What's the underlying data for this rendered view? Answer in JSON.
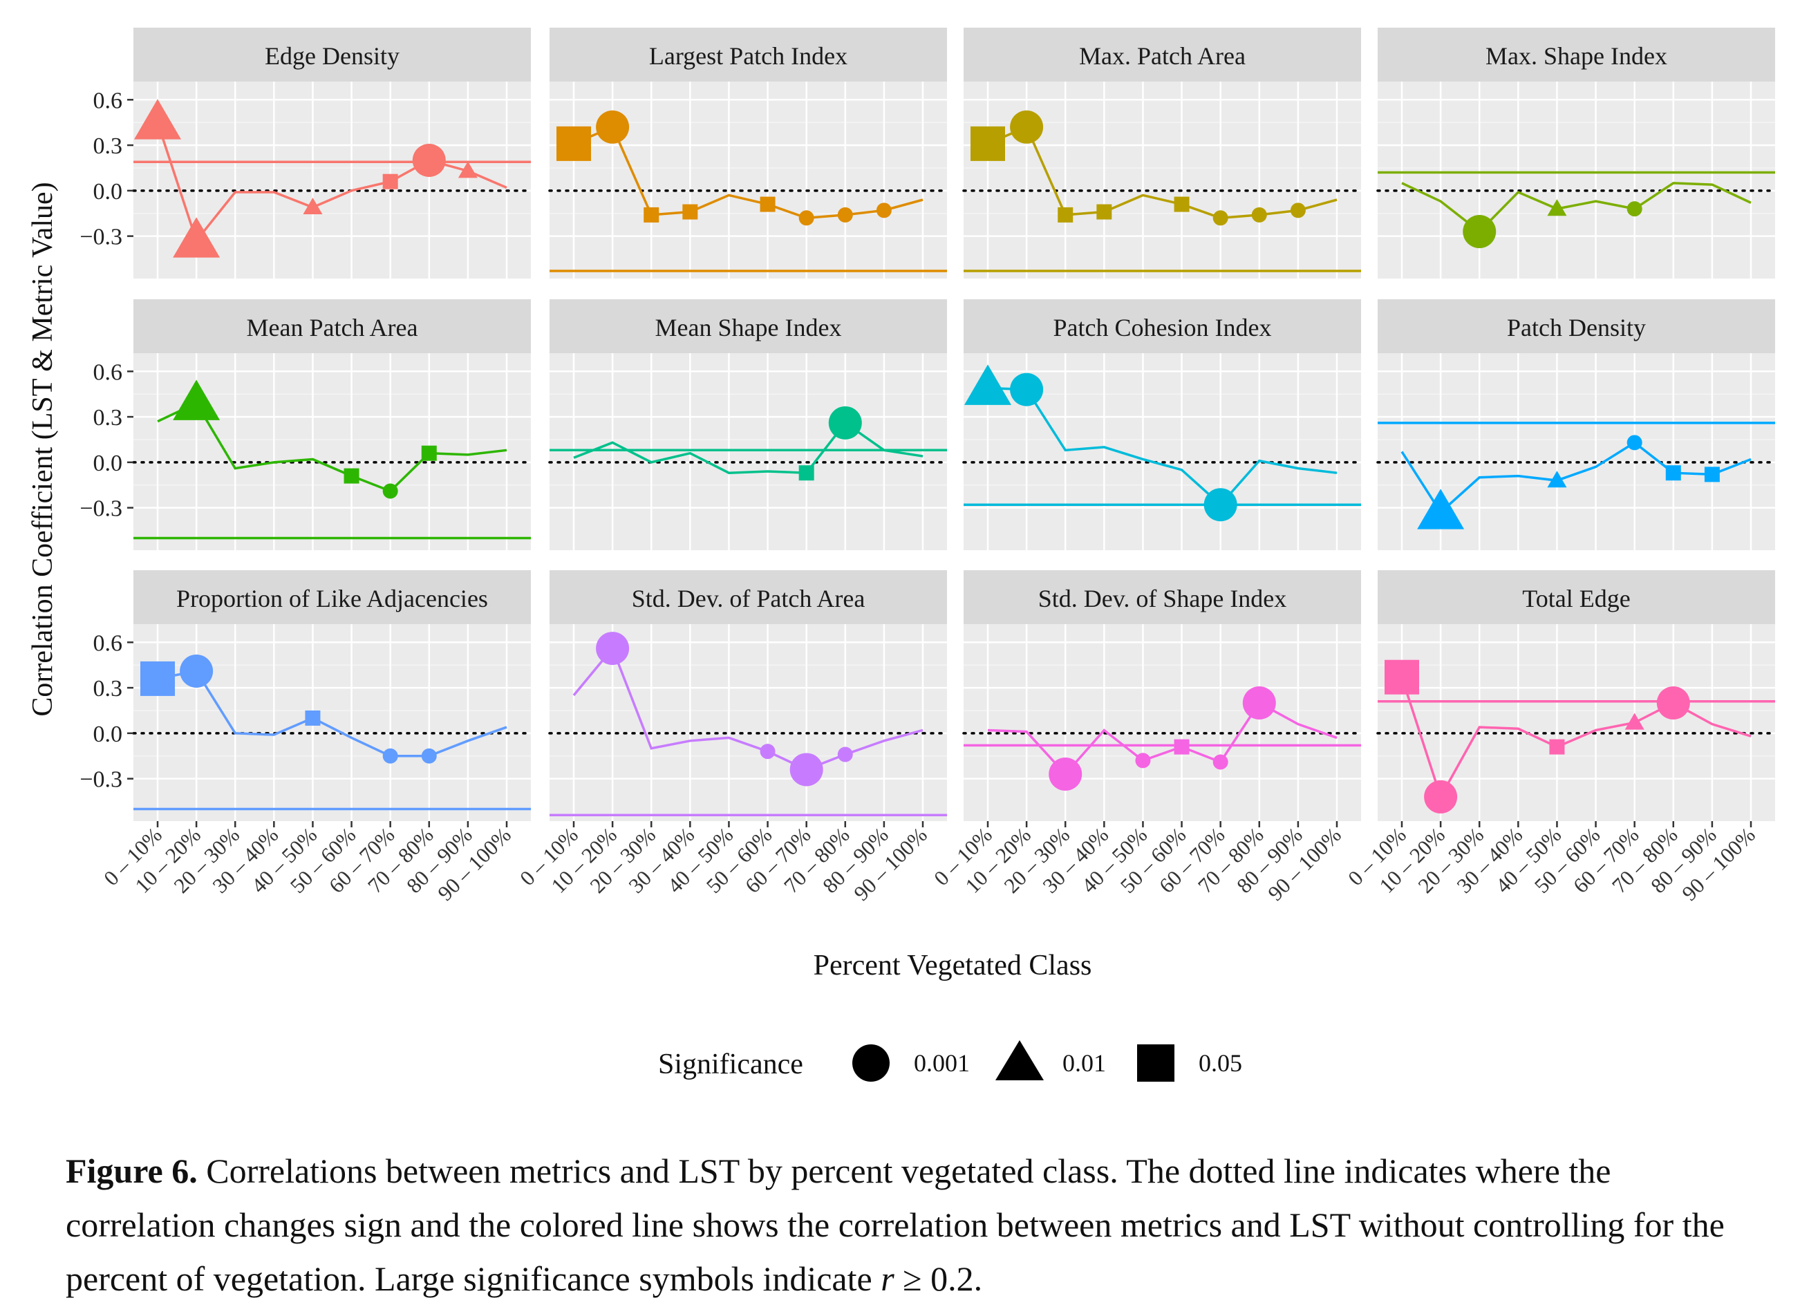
{
  "figure": {
    "y_axis_title": "Correlation Coefficient (LST & Metric Value)",
    "x_axis_title": "Percent Vegetated Class",
    "legend": {
      "title": "Significance",
      "entries": [
        {
          "label": "0.001",
          "shape": "circle"
        },
        {
          "label": "0.01",
          "shape": "triangle"
        },
        {
          "label": "0.05",
          "shape": "square"
        }
      ]
    },
    "caption": {
      "label": "Figure 6.",
      "text_before": " Correlations between metrics and LST by percent vegetated class. The dotted line indicates where the correlation changes sign and the colored line shows the correlation between metrics and LST without controlling for the percent of vegetation. Large significance symbols indicate ",
      "math_var": "r",
      "text_after": " ≥ 0.2."
    },
    "colors": {
      "strip_bg": "#d9d9d9",
      "panel_bg": "#ebebeb",
      "grid_major": "#ffffff",
      "grid_minor": "#f4f4f4"
    }
  },
  "chart_data": {
    "type": "line",
    "categories": [
      "0 – 10%",
      "10 – 20%",
      "20 – 30%",
      "30 – 40%",
      "40 – 50%",
      "50 – 60%",
      "60 – 70%",
      "70 – 80%",
      "80 – 90%",
      "90 – 100%"
    ],
    "ylim": [
      -0.58,
      0.72
    ],
    "yticks": [
      -0.3,
      0.0,
      0.3,
      0.6
    ],
    "ytick_labels": [
      "−0.3",
      "0.0",
      "0.3",
      "0.6"
    ],
    "reference_line": 0,
    "panels": [
      {
        "title": "Edge Density",
        "color": "#F8766D",
        "overall": 0.19,
        "values": [
          0.45,
          -0.33,
          -0.01,
          -0.01,
          -0.11,
          0.0,
          0.06,
          0.2,
          0.13,
          0.02
        ],
        "sig": [
          [
            "triangle",
            1
          ],
          [
            "triangle",
            1
          ],
          null,
          null,
          [
            "triangle",
            0
          ],
          null,
          [
            "square",
            0
          ],
          [
            "circle",
            1
          ],
          [
            "triangle",
            0
          ],
          null
        ]
      },
      {
        "title": "Largest Patch Index",
        "color": "#DE8C00",
        "overall": -0.53,
        "values": [
          0.31,
          0.42,
          -0.16,
          -0.14,
          -0.03,
          -0.09,
          -0.18,
          -0.16,
          -0.13,
          -0.06
        ],
        "sig": [
          [
            "square",
            1
          ],
          [
            "circle",
            1
          ],
          [
            "square",
            0
          ],
          [
            "square",
            0
          ],
          null,
          [
            "square",
            0
          ],
          [
            "circle",
            0
          ],
          [
            "circle",
            0
          ],
          [
            "circle",
            0
          ],
          null
        ]
      },
      {
        "title": "Max. Patch Area",
        "color": "#B79F00",
        "overall": -0.53,
        "values": [
          0.31,
          0.42,
          -0.16,
          -0.14,
          -0.03,
          -0.09,
          -0.18,
          -0.16,
          -0.13,
          -0.06
        ],
        "sig": [
          [
            "square",
            1
          ],
          [
            "circle",
            1
          ],
          [
            "square",
            0
          ],
          [
            "square",
            0
          ],
          null,
          [
            "square",
            0
          ],
          [
            "circle",
            0
          ],
          [
            "circle",
            0
          ],
          [
            "circle",
            0
          ],
          null
        ]
      },
      {
        "title": "Max. Shape Index",
        "color": "#7CAE00",
        "overall": 0.12,
        "values": [
          0.05,
          -0.07,
          -0.27,
          -0.01,
          -0.12,
          -0.07,
          -0.12,
          0.05,
          0.04,
          -0.08
        ],
        "sig": [
          null,
          null,
          [
            "circle",
            1
          ],
          null,
          [
            "triangle",
            0
          ],
          null,
          [
            "circle",
            0
          ],
          null,
          null,
          null
        ]
      },
      {
        "title": "Mean Patch Area",
        "color": "#2DB600",
        "overall": -0.5,
        "values": [
          0.27,
          0.39,
          -0.04,
          0.0,
          0.02,
          -0.09,
          -0.19,
          0.06,
          0.05,
          0.08
        ],
        "sig": [
          null,
          [
            "triangle",
            1
          ],
          null,
          null,
          null,
          [
            "square",
            0
          ],
          [
            "circle",
            0
          ],
          [
            "square",
            0
          ],
          null,
          null
        ]
      },
      {
        "title": "Mean Shape Index",
        "color": "#00C08B",
        "overall": 0.08,
        "values": [
          0.03,
          0.13,
          0.0,
          0.06,
          -0.07,
          -0.06,
          -0.07,
          0.26,
          0.08,
          0.04
        ],
        "sig": [
          null,
          null,
          null,
          null,
          null,
          null,
          [
            "square",
            0
          ],
          [
            "circle",
            1
          ],
          null,
          null
        ]
      },
      {
        "title": "Patch Cohesion Index",
        "color": "#00BBDA",
        "overall": -0.28,
        "values": [
          0.49,
          0.48,
          0.08,
          0.1,
          0.02,
          -0.05,
          -0.28,
          0.01,
          -0.04,
          -0.07
        ],
        "sig": [
          [
            "triangle",
            1
          ],
          [
            "circle",
            1
          ],
          null,
          null,
          null,
          null,
          [
            "circle",
            1
          ],
          null,
          null,
          null
        ]
      },
      {
        "title": "Patch Density",
        "color": "#00A9FF",
        "overall": 0.26,
        "values": [
          0.07,
          -0.33,
          -0.1,
          -0.09,
          -0.12,
          -0.03,
          0.13,
          -0.07,
          -0.08,
          0.02
        ],
        "sig": [
          null,
          [
            "triangle",
            1
          ],
          null,
          null,
          [
            "triangle",
            0
          ],
          null,
          [
            "circle",
            0
          ],
          [
            "square",
            0
          ],
          [
            "square",
            0
          ],
          null
        ]
      },
      {
        "title": "Proportion of Like Adjacencies",
        "color": "#619CFF",
        "overall": -0.5,
        "values": [
          0.36,
          0.41,
          0.0,
          -0.01,
          0.1,
          -0.03,
          -0.15,
          -0.15,
          -0.05,
          0.04
        ],
        "sig": [
          [
            "square",
            1
          ],
          [
            "circle",
            1
          ],
          null,
          null,
          [
            "square",
            0
          ],
          null,
          [
            "circle",
            0
          ],
          [
            "circle",
            0
          ],
          null,
          null
        ]
      },
      {
        "title": "Std. Dev. of Patch Area",
        "color": "#C77CFF",
        "overall": -0.54,
        "values": [
          0.25,
          0.56,
          -0.1,
          -0.05,
          -0.03,
          -0.12,
          -0.24,
          -0.14,
          -0.05,
          0.02
        ],
        "sig": [
          null,
          [
            "circle",
            1
          ],
          null,
          null,
          null,
          [
            "circle",
            0
          ],
          [
            "circle",
            1
          ],
          [
            "circle",
            0
          ],
          null,
          null
        ]
      },
      {
        "title": "Std. Dev. of Shape Index",
        "color": "#F564E3",
        "overall": -0.08,
        "values": [
          0.02,
          0.01,
          -0.27,
          0.02,
          -0.18,
          -0.09,
          -0.19,
          0.2,
          0.06,
          -0.03
        ],
        "sig": [
          null,
          null,
          [
            "circle",
            1
          ],
          null,
          [
            "circle",
            0
          ],
          [
            "square",
            0
          ],
          [
            "circle",
            0
          ],
          [
            "circle",
            1
          ],
          null,
          null
        ]
      },
      {
        "title": "Total Edge",
        "color": "#FF64B0",
        "overall": 0.21,
        "values": [
          0.37,
          -0.42,
          0.04,
          0.03,
          -0.09,
          0.02,
          0.07,
          0.2,
          0.06,
          -0.02
        ],
        "sig": [
          [
            "square",
            1
          ],
          [
            "circle",
            1
          ],
          null,
          null,
          [
            "square",
            0
          ],
          null,
          [
            "triangle",
            0
          ],
          [
            "circle",
            1
          ],
          null,
          null
        ]
      }
    ]
  }
}
